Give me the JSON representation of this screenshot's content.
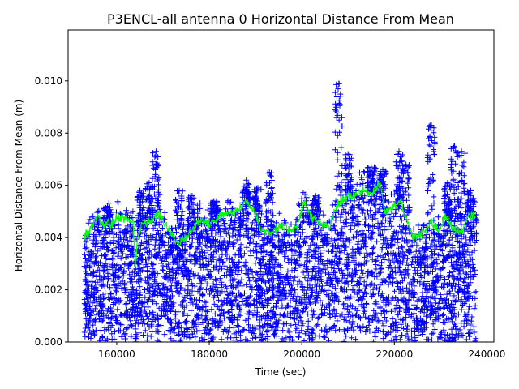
{
  "chart_data": {
    "type": "scatter",
    "title": "P3ENCL-all antenna 0 Horizontal Distance From Mean",
    "xlabel": "Time (sec)",
    "ylabel": "Horizontal Distance From Mean (m)",
    "xlim": [
      149500,
      241500
    ],
    "ylim": [
      0,
      0.01195
    ],
    "x_ticks": [
      160000,
      180000,
      200000,
      220000,
      240000
    ],
    "x_tick_labels": [
      "160000",
      "180000",
      "200000",
      "220000",
      "240000"
    ],
    "y_ticks": [
      0.0,
      0.002,
      0.004,
      0.006,
      0.008,
      0.01
    ],
    "y_tick_labels": [
      "0.000",
      "0.002",
      "0.004",
      "0.006",
      "0.008",
      "0.010"
    ],
    "grid": false,
    "legend": "none",
    "series": [
      {
        "marker": "+",
        "color": "#0000ff",
        "data_extent": {
          "x_min": 153000,
          "x_max": 237800
        },
        "spikes": [
          {
            "x": 158000,
            "y": 0.0052
          },
          {
            "x": 165000,
            "y": 0.0058
          },
          {
            "x": 167000,
            "y": 0.0061
          },
          {
            "x": 168500,
            "y": 0.0073
          },
          {
            "x": 173500,
            "y": 0.0058
          },
          {
            "x": 176000,
            "y": 0.0056
          },
          {
            "x": 181000,
            "y": 0.0054
          },
          {
            "x": 188000,
            "y": 0.0062
          },
          {
            "x": 190500,
            "y": 0.0059
          },
          {
            "x": 193000,
            "y": 0.0065
          },
          {
            "x": 203000,
            "y": 0.0056
          },
          {
            "x": 208000,
            "y": 0.0099
          },
          {
            "x": 210000,
            "y": 0.0072
          },
          {
            "x": 215000,
            "y": 0.0067
          },
          {
            "x": 217500,
            "y": 0.0066
          },
          {
            "x": 221000,
            "y": 0.0073
          },
          {
            "x": 222500,
            "y": 0.0068
          },
          {
            "x": 228000,
            "y": 0.0083
          },
          {
            "x": 231500,
            "y": 0.0061
          },
          {
            "x": 233000,
            "y": 0.0075
          },
          {
            "x": 234500,
            "y": 0.0073
          },
          {
            "x": 236500,
            "y": 0.0058
          }
        ]
      },
      {
        "type": "line",
        "color": "#00ff00",
        "x": [
          153000,
          154000,
          155000,
          156000,
          157000,
          158000,
          159000,
          160000,
          162000,
          163500,
          164000,
          164500,
          165500,
          167000,
          169000,
          171000,
          173000,
          175000,
          178000,
          180000,
          182000,
          184000,
          186000,
          188000,
          190000,
          191000,
          193000,
          195000,
          197000,
          199000,
          200500,
          202000,
          204000,
          206000,
          207500,
          209000,
          211000,
          213000,
          215000,
          217000,
          218000,
          220000,
          221500,
          222500,
          224000,
          226000,
          228000,
          229500,
          231000,
          233000,
          234500,
          236000,
          237500
        ],
        "y": [
          0.0041,
          0.0042,
          0.0045,
          0.0048,
          0.0044,
          0.0046,
          0.0045,
          0.0048,
          0.0047,
          0.0046,
          0.0029,
          0.004,
          0.0045,
          0.0046,
          0.0049,
          0.0044,
          0.0038,
          0.004,
          0.0047,
          0.0045,
          0.0048,
          0.0049,
          0.005,
          0.0054,
          0.005,
          0.0043,
          0.0042,
          0.0044,
          0.0043,
          0.0044,
          0.0054,
          0.0048,
          0.0045,
          0.0044,
          0.0052,
          0.0055,
          0.0056,
          0.0058,
          0.0057,
          0.0061,
          0.0049,
          0.0052,
          0.0054,
          0.0047,
          0.004,
          0.0041,
          0.0046,
          0.0043,
          0.0048,
          0.0043,
          0.0042,
          0.0048,
          0.0049
        ]
      }
    ]
  }
}
